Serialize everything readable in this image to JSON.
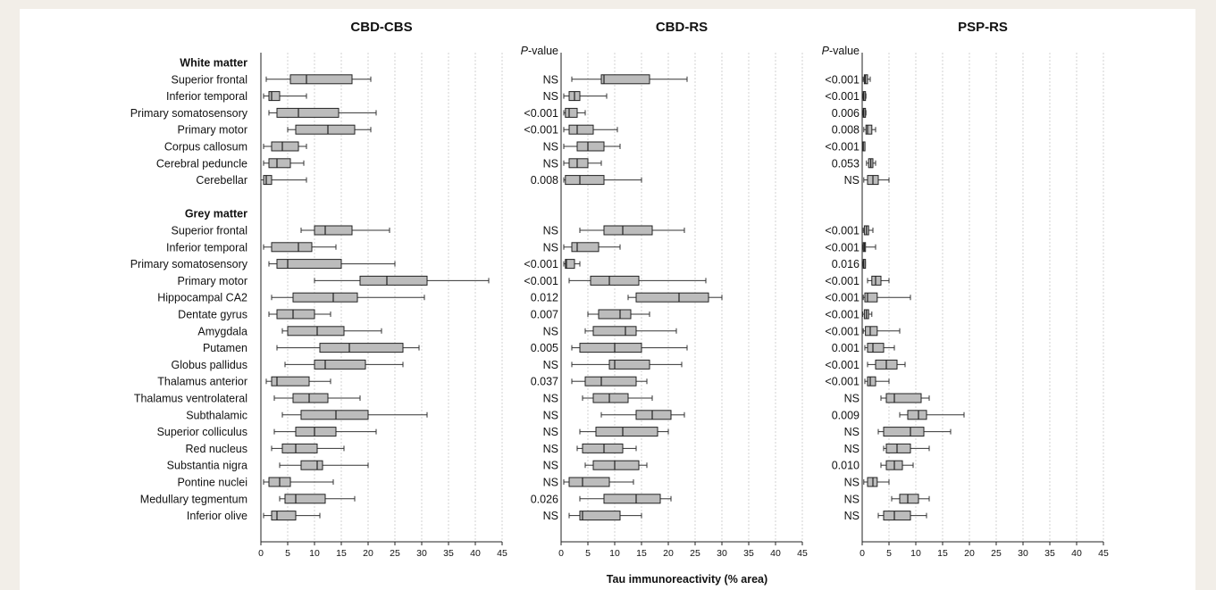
{
  "chart_data": {
    "type": "boxplot",
    "xlabel": "Tau immunoreactivity (% area)",
    "pvalue_header": "P-value",
    "xlim": [
      0,
      45
    ],
    "xticks": [
      0,
      5,
      10,
      15,
      20,
      25,
      30,
      35,
      40,
      45
    ],
    "groups": [
      "White matter",
      "Grey matter"
    ],
    "regions": [
      {
        "group": 0,
        "label": "Superior frontal"
      },
      {
        "group": 0,
        "label": "Inferior temporal"
      },
      {
        "group": 0,
        "label": "Primary somatosensory"
      },
      {
        "group": 0,
        "label": "Primary motor"
      },
      {
        "group": 0,
        "label": "Corpus callosum"
      },
      {
        "group": 0,
        "label": "Cerebral peduncle"
      },
      {
        "group": 0,
        "label": "Cerebellar"
      },
      {
        "group": 1,
        "label": "Superior frontal"
      },
      {
        "group": 1,
        "label": "Inferior temporal"
      },
      {
        "group": 1,
        "label": "Primary somatosensory"
      },
      {
        "group": 1,
        "label": "Primary motor"
      },
      {
        "group": 1,
        "label": "Hippocampal CA2"
      },
      {
        "group": 1,
        "label": "Dentate gyrus"
      },
      {
        "group": 1,
        "label": "Amygdala"
      },
      {
        "group": 1,
        "label": "Putamen"
      },
      {
        "group": 1,
        "label": "Globus pallidus"
      },
      {
        "group": 1,
        "label": "Thalamus anterior"
      },
      {
        "group": 1,
        "label": "Thalamus ventrolateral"
      },
      {
        "group": 1,
        "label": "Subthalamic"
      },
      {
        "group": 1,
        "label": "Superior colliculus"
      },
      {
        "group": 1,
        "label": "Red nucleus"
      },
      {
        "group": 1,
        "label": "Substantia nigra"
      },
      {
        "group": 1,
        "label": "Pontine nuclei"
      },
      {
        "group": 1,
        "label": "Medullary tegmentum"
      },
      {
        "group": 1,
        "label": "Inferior olive"
      }
    ],
    "panels": [
      {
        "title": "CBD-CBS",
        "pvalues": null,
        "boxes": [
          [
            1,
            5.5,
            8.5,
            17,
            20.5
          ],
          [
            0.5,
            1.5,
            2,
            3.5,
            8.5
          ],
          [
            1.5,
            3,
            7,
            14.5,
            21.5
          ],
          [
            5,
            6.5,
            12.5,
            17.5,
            20.5
          ],
          [
            0.5,
            2,
            4,
            7,
            8.5
          ],
          [
            0.5,
            1.5,
            3,
            5.5,
            8
          ],
          [
            0,
            0.5,
            1,
            2,
            8.5
          ],
          [
            7.5,
            10,
            12,
            17,
            24
          ],
          [
            0.5,
            2,
            7,
            9.5,
            14
          ],
          [
            1.5,
            3,
            5,
            15,
            25
          ],
          [
            10,
            18.5,
            23.5,
            31,
            42.5
          ],
          [
            2,
            6,
            13.5,
            18,
            30.5
          ],
          [
            1.5,
            3,
            6,
            10,
            13
          ],
          [
            4,
            5,
            10.5,
            15.5,
            22.5
          ],
          [
            3,
            11,
            16.5,
            26.5,
            29.5
          ],
          [
            4.5,
            10,
            12,
            19.5,
            26.5
          ],
          [
            1,
            2,
            3,
            9,
            13
          ],
          [
            2.5,
            6,
            9,
            12.5,
            18.5
          ],
          [
            4,
            7.5,
            14,
            20,
            31
          ],
          [
            2.5,
            6.5,
            10,
            14,
            21.5
          ],
          [
            2,
            4,
            6.5,
            10.5,
            15.5
          ],
          [
            3.5,
            7.5,
            10.5,
            11.5,
            20
          ],
          [
            0.5,
            1.5,
            3.5,
            5.5,
            13.5
          ],
          [
            3.5,
            4.5,
            6.5,
            12,
            17.5
          ],
          [
            0.5,
            2,
            3,
            6.5,
            11
          ]
        ]
      },
      {
        "title": "CBD-RS",
        "pvalues": [
          "NS",
          "NS",
          "<0.001",
          "<0.001",
          "NS",
          "NS",
          "0.008",
          "NS",
          "NS",
          "<0.001",
          "<0.001",
          "0.012",
          "0.007",
          "NS",
          "0.005",
          "NS",
          "0.037",
          "NS",
          "NS",
          "NS",
          "NS",
          "NS",
          "NS",
          "0.026",
          "NS"
        ],
        "boxes": [
          [
            2,
            7.5,
            8,
            16.5,
            23.5
          ],
          [
            0.5,
            1.5,
            2.5,
            3.5,
            8.5
          ],
          [
            0.5,
            0.8,
            1.5,
            3,
            4.5
          ],
          [
            0.5,
            1.5,
            3,
            6,
            10.5
          ],
          [
            0.5,
            3,
            5,
            8,
            11
          ],
          [
            0.5,
            1.5,
            3,
            5,
            7.5
          ],
          [
            0.5,
            0.8,
            3.5,
            8,
            15
          ],
          [
            3.5,
            8,
            11.5,
            17,
            23
          ],
          [
            0.5,
            2,
            3,
            7,
            11
          ],
          [
            0.5,
            0.8,
            1,
            2.5,
            3.5
          ],
          [
            1.5,
            5.5,
            9,
            14.5,
            27
          ],
          [
            12.5,
            14,
            22,
            27.5,
            30
          ],
          [
            5,
            7,
            11,
            13,
            16.5
          ],
          [
            4.5,
            6,
            12,
            14,
            21.5
          ],
          [
            2,
            3.5,
            10,
            15,
            23.5
          ],
          [
            2,
            9,
            10,
            16.5,
            22.5
          ],
          [
            2,
            4.5,
            7.5,
            14,
            16
          ],
          [
            4,
            6,
            9,
            12.5,
            17
          ],
          [
            7.5,
            14,
            17,
            20.5,
            23
          ],
          [
            3.5,
            6.5,
            11.5,
            18,
            20
          ],
          [
            3,
            4,
            8,
            11.5,
            14
          ],
          [
            4.5,
            6,
            10,
            14.5,
            16
          ],
          [
            0.5,
            1.5,
            4,
            9,
            13.5
          ],
          [
            3.5,
            8,
            14,
            18.5,
            20.5
          ],
          [
            1.5,
            3.5,
            4,
            11,
            15
          ]
        ]
      },
      {
        "title": "PSP-RS",
        "pvalues": [
          "<0.001",
          "<0.001",
          "0.006",
          "0.008",
          "<0.001",
          "0.053",
          "NS",
          "<0.001",
          "<0.001",
          "0.016",
          "<0.001",
          "<0.001",
          "<0.001",
          "<0.001",
          "0.001",
          "<0.001",
          "<0.001",
          "NS",
          "0.009",
          "NS",
          "NS",
          "0.010",
          "NS",
          "NS",
          "NS"
        ],
        "boxes": [
          [
            0.2,
            0.4,
            0.6,
            1,
            1.5
          ],
          [
            0.1,
            0.2,
            0.3,
            0.5,
            0.7
          ],
          [
            0.1,
            0.2,
            0.3,
            0.5,
            0.7
          ],
          [
            0.3,
            0.7,
            1,
            1.8,
            2.5
          ],
          [
            0.05,
            0.1,
            0.2,
            0.3,
            0.4
          ],
          [
            0.8,
            1.2,
            1.6,
            2,
            2.5
          ],
          [
            0.3,
            1,
            2,
            3,
            5
          ]
        ],
        "boxes_grey": [
          [
            0.2,
            0.4,
            0.8,
            1.2,
            2
          ],
          [
            0.1,
            0.2,
            0.4,
            0.6,
            2.5
          ],
          [
            0.1,
            0.2,
            0.3,
            0.5,
            0.6
          ],
          [
            1,
            1.8,
            2.5,
            3.5,
            5
          ],
          [
            0.2,
            0.5,
            1,
            2.8,
            9
          ],
          [
            0.1,
            0.4,
            0.8,
            1.2,
            1.8
          ],
          [
            0.2,
            0.6,
            1.5,
            2.8,
            7
          ],
          [
            0.5,
            1,
            2,
            4,
            6
          ],
          [
            1,
            2.5,
            4.5,
            6.5,
            8
          ],
          [
            0.5,
            1,
            1.5,
            2.5,
            5
          ],
          [
            3.5,
            4.5,
            6,
            11,
            12.5
          ],
          [
            7,
            8.5,
            10.5,
            12,
            19
          ],
          [
            3,
            4,
            9,
            11.5,
            16.5
          ],
          [
            4,
            4.5,
            6.5,
            9,
            12.5
          ],
          [
            3.5,
            4.5,
            6,
            7.5,
            9.5
          ],
          [
            0.3,
            1,
            2,
            2.8,
            5
          ],
          [
            5.5,
            7,
            8.5,
            10.5,
            12.5
          ],
          [
            3,
            4,
            6,
            9,
            12
          ]
        ]
      }
    ]
  }
}
